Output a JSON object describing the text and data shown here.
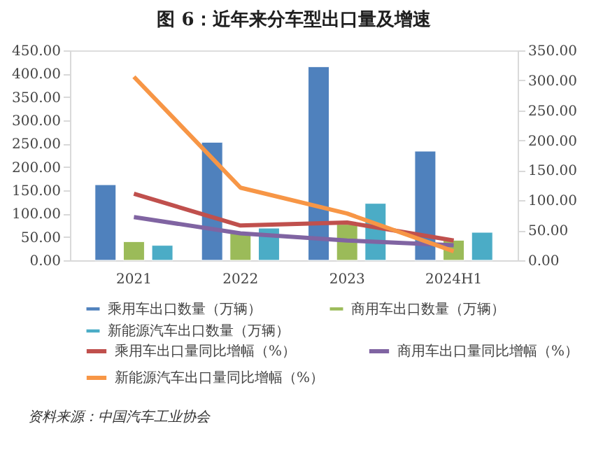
{
  "chart_data": {
    "type": "bar",
    "title": "图 6：近年来分车型出口量及增速",
    "categories": [
      "2021",
      "2022",
      "2023",
      "2024H1"
    ],
    "series": [
      {
        "name": "乘用车出口数量（万辆）",
        "color": "#4f81bd",
        "values": [
          162,
          253,
          415,
          234
        ]
      },
      {
        "name": "商用车出口数量（万辆）",
        "color": "#9bbb59",
        "values": [
          40,
          58,
          77,
          43
        ]
      },
      {
        "name": "新能源汽车出口数量（万辆）",
        "color": "#4bacc6",
        "values": [
          32,
          69,
          122,
          60
        ]
      },
      {
        "name": "乘用车出口量同比增幅（%）",
        "type": "line",
        "axis": "y2",
        "color": "#c0504d",
        "values": [
          111,
          58,
          63,
          33
        ]
      },
      {
        "name": "商用车出口量同比增幅（%）",
        "type": "line",
        "axis": "y2",
        "color": "#8064a2",
        "values": [
          72,
          45,
          33,
          25
        ]
      },
      {
        "name": "新能源汽车出口量同比增幅（%）",
        "type": "line",
        "axis": "y2",
        "color": "#f79646",
        "values": [
          306,
          121,
          78,
          15
        ]
      }
    ],
    "ylim": [
      0,
      450
    ],
    "yticks": [
      {
        "value": 0,
        "label": "0.00"
      },
      {
        "value": 50,
        "label": "50.00"
      },
      {
        "value": 100,
        "label": "100.00"
      },
      {
        "value": 150,
        "label": "150.00"
      },
      {
        "value": 200,
        "label": "200.00"
      },
      {
        "value": 250,
        "label": "250.00"
      },
      {
        "value": 300,
        "label": "300.00"
      },
      {
        "value": 350,
        "label": "350.00"
      },
      {
        "value": 400,
        "label": "400.00"
      },
      {
        "value": 450,
        "label": "450.00"
      }
    ],
    "y2lim": [
      0,
      350
    ],
    "y2ticks": [
      {
        "value": 0,
        "label": "0.00"
      },
      {
        "value": 50,
        "label": "50.00"
      },
      {
        "value": 100,
        "label": "100.00"
      },
      {
        "value": 150,
        "label": "150.00"
      },
      {
        "value": 200,
        "label": "200.00"
      },
      {
        "value": 250,
        "label": "250.00"
      },
      {
        "value": 300,
        "label": "300.00"
      },
      {
        "value": 350,
        "label": "350.00"
      }
    ],
    "grid": false,
    "legend": "bottom",
    "marker": "none",
    "line_style": "solid",
    "annotations": [
      "资料来源：中国汽车工业协会"
    ]
  }
}
